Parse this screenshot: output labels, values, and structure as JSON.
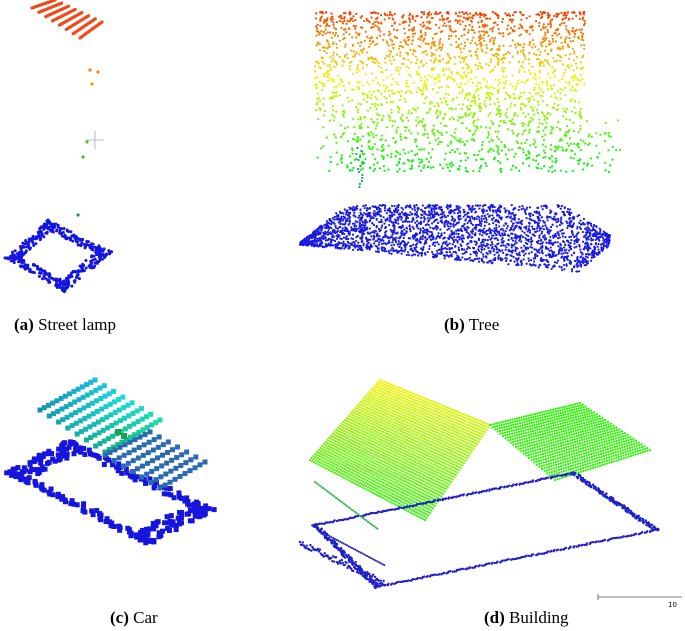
{
  "panels": [
    {
      "label": "(a)",
      "name": "Street lamp"
    },
    {
      "label": "(b)",
      "name": "Tree"
    },
    {
      "label": "(c)",
      "name": "Car"
    },
    {
      "label": "(d)",
      "name": "Building"
    }
  ],
  "scale_bar": {
    "label": 10
  }
}
